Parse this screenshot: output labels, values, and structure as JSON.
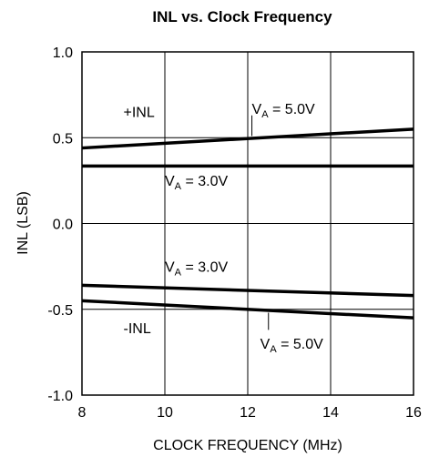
{
  "chart_data": {
    "type": "line",
    "title": "INL vs. Clock Frequency",
    "xlabel": "CLOCK FREQUENCY (MHz)",
    "ylabel": "INL (LSB)",
    "xlim": [
      8,
      16
    ],
    "ylim": [
      -1.0,
      1.0
    ],
    "x_ticks": [
      8,
      10,
      12,
      14,
      16
    ],
    "x_tick_labels": [
      "8",
      "10",
      "12",
      "14",
      "16"
    ],
    "y_ticks": [
      1.0,
      0.5,
      0.0,
      -0.5,
      -1.0
    ],
    "y_tick_labels": [
      "1.0",
      "0.5",
      "0.0",
      "-0.5",
      "-1.0"
    ],
    "grid": true,
    "series": [
      {
        "group": "+INL",
        "supply": "5.0V",
        "x": [
          8,
          16
        ],
        "y": [
          0.44,
          0.55
        ]
      },
      {
        "group": "+INL",
        "supply": "3.0V",
        "x": [
          8,
          16
        ],
        "y": [
          0.335,
          0.335
        ]
      },
      {
        "group": "-INL",
        "supply": "3.0V",
        "x": [
          8,
          16
        ],
        "y": [
          -0.36,
          -0.42
        ]
      },
      {
        "group": "-INL",
        "supply": "5.0V",
        "x": [
          8,
          16
        ],
        "y": [
          -0.45,
          -0.55
        ]
      }
    ],
    "annotations": [
      {
        "text": "+INL",
        "x": 9.0,
        "y": 0.62
      },
      {
        "text_main": "V",
        "text_sub": "A",
        "text_rest": " = 5.0V",
        "x": 12.1,
        "y": 0.64
      },
      {
        "text_main": "V",
        "text_sub": "A",
        "text_rest": " = 3.0V",
        "x": 10.0,
        "y": 0.22
      },
      {
        "text_main": "V",
        "text_sub": "A",
        "text_rest": " = 3.0V",
        "x": 10.0,
        "y": -0.28
      },
      {
        "text": "-INL",
        "x": 9.0,
        "y": -0.64
      },
      {
        "text_main": "V",
        "text_sub": "A",
        "text_rest": " = 5.0V",
        "x": 12.3,
        "y": -0.73
      }
    ],
    "leader_lines": [
      {
        "x": 12.1,
        "y1": 0.51,
        "y2": 0.63
      },
      {
        "x": 12.0,
        "y1": 0.34,
        "y2": 0.16
      },
      {
        "x": 12.0,
        "y1": -0.3,
        "y2": -0.38
      },
      {
        "x": 12.5,
        "y1": -0.52,
        "y2": -0.62
      }
    ]
  }
}
